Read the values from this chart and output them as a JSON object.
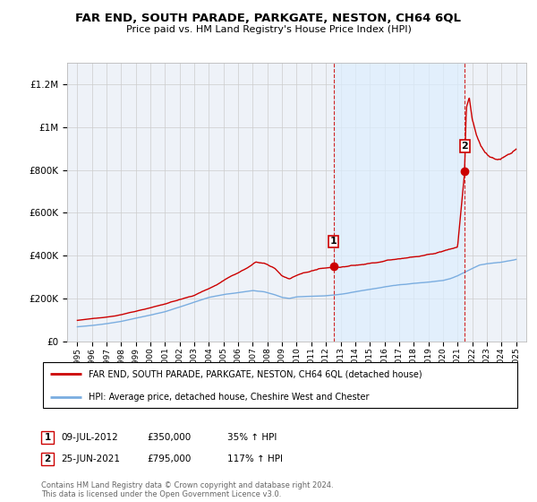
{
  "title": "FAR END, SOUTH PARADE, PARKGATE, NESTON, CH64 6QL",
  "subtitle": "Price paid vs. HM Land Registry's House Price Index (HPI)",
  "legend_label_red": "FAR END, SOUTH PARADE, PARKGATE, NESTON, CH64 6QL (detached house)",
  "legend_label_blue": "HPI: Average price, detached house, Cheshire West and Chester",
  "footnote": "Contains HM Land Registry data © Crown copyright and database right 2024.\nThis data is licensed under the Open Government Licence v3.0.",
  "sale1_date": "09-JUL-2012",
  "sale1_price": "£350,000",
  "sale1_hpi": "35% ↑ HPI",
  "sale2_date": "25-JUN-2021",
  "sale2_price": "£795,000",
  "sale2_hpi": "117% ↑ HPI",
  "ylim": [
    0,
    1300000
  ],
  "xlim_left": 1994.3,
  "xlim_right": 2025.7,
  "red_color": "#cc0000",
  "blue_color": "#7aade0",
  "shade_color": "#ddeeff",
  "background_color": "#ffffff",
  "plot_bg_color": "#eef2f8",
  "grid_color": "#cccccc",
  "sale1_x": 2012.53,
  "sale1_y": 350000,
  "sale2_x": 2021.48,
  "sale2_y": 795000
}
